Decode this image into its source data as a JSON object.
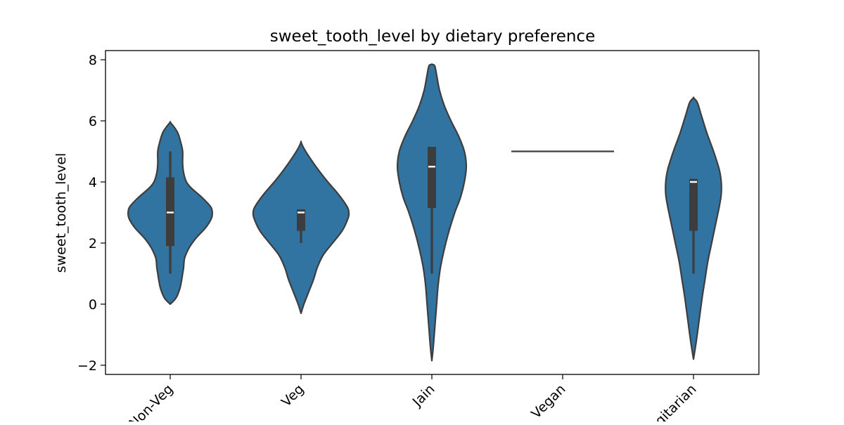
{
  "chart_data": {
    "type": "violin",
    "title": "sweet_tooth_level by dietary preference",
    "xlabel": "",
    "ylabel": "sweet_tooth_level",
    "categories": [
      "Non-Veg",
      "Veg",
      "Jain",
      "Vegan",
      "Eggitarian"
    ],
    "ylim": [
      -2.3,
      8.3
    ],
    "yticks": [
      -2,
      0,
      2,
      4,
      6,
      8
    ],
    "ytick_labels": [
      "−2",
      "0",
      "2",
      "4",
      "6",
      "8"
    ],
    "grid": false,
    "legend": "none",
    "violins": [
      {
        "category": "Non-Veg",
        "kde_min": 0.0,
        "kde_max": 5.95,
        "density_half_width": [
          [
            0.0,
            0.0
          ],
          [
            0.2,
            0.12
          ],
          [
            0.5,
            0.2
          ],
          [
            0.8,
            0.24
          ],
          [
            1.0,
            0.26
          ],
          [
            1.2,
            0.28
          ],
          [
            1.5,
            0.3
          ],
          [
            1.8,
            0.38
          ],
          [
            2.0,
            0.46
          ],
          [
            2.2,
            0.56
          ],
          [
            2.5,
            0.74
          ],
          [
            2.8,
            0.86
          ],
          [
            3.0,
            0.88
          ],
          [
            3.2,
            0.84
          ],
          [
            3.5,
            0.66
          ],
          [
            3.8,
            0.44
          ],
          [
            4.0,
            0.34
          ],
          [
            4.3,
            0.28
          ],
          [
            4.6,
            0.26
          ],
          [
            5.0,
            0.26
          ],
          [
            5.3,
            0.22
          ],
          [
            5.6,
            0.16
          ],
          [
            5.8,
            0.08
          ],
          [
            5.95,
            0.0
          ]
        ],
        "whisker_low": 1.0,
        "q1": 1.9,
        "median": 3.0,
        "q3": 4.15,
        "whisker_high": 5.0
      },
      {
        "category": "Veg",
        "kde_min": -0.3,
        "kde_max": 5.3,
        "density_half_width": [
          [
            -0.3,
            0.0
          ],
          [
            0.0,
            0.06
          ],
          [
            0.4,
            0.16
          ],
          [
            0.8,
            0.26
          ],
          [
            1.2,
            0.34
          ],
          [
            1.6,
            0.46
          ],
          [
            2.0,
            0.66
          ],
          [
            2.4,
            0.86
          ],
          [
            2.8,
            0.98
          ],
          [
            3.0,
            1.0
          ],
          [
            3.2,
            0.96
          ],
          [
            3.6,
            0.78
          ],
          [
            4.0,
            0.56
          ],
          [
            4.4,
            0.36
          ],
          [
            4.8,
            0.18
          ],
          [
            5.1,
            0.06
          ],
          [
            5.3,
            0.0
          ]
        ],
        "whisker_low": 2.0,
        "q1": 2.4,
        "median": 3.0,
        "q3": 3.1,
        "whisker_high": 3.1
      },
      {
        "category": "Jain",
        "kde_min": -1.85,
        "kde_max": 7.85,
        "density_half_width": [
          [
            -1.85,
            0.0
          ],
          [
            -1.4,
            0.03
          ],
          [
            -0.8,
            0.06
          ],
          [
            0.0,
            0.1
          ],
          [
            0.6,
            0.13
          ],
          [
            1.2,
            0.18
          ],
          [
            1.8,
            0.26
          ],
          [
            2.4,
            0.36
          ],
          [
            3.0,
            0.48
          ],
          [
            3.5,
            0.6
          ],
          [
            4.0,
            0.68
          ],
          [
            4.5,
            0.72
          ],
          [
            5.0,
            0.68
          ],
          [
            5.5,
            0.56
          ],
          [
            6.0,
            0.4
          ],
          [
            6.5,
            0.26
          ],
          [
            7.0,
            0.16
          ],
          [
            7.5,
            0.1
          ],
          [
            7.8,
            0.06
          ],
          [
            7.85,
            0.0
          ]
        ],
        "whisker_low": 1.0,
        "q1": 3.15,
        "median": 4.5,
        "q3": 5.15,
        "whisker_high": 5.15
      },
      {
        "category": "Vegan",
        "single_value": 5.0
      },
      {
        "category": "Eggitarian",
        "kde_min": -1.8,
        "kde_max": 6.75,
        "density_half_width": [
          [
            -1.8,
            0.0
          ],
          [
            -1.2,
            0.06
          ],
          [
            -0.5,
            0.12
          ],
          [
            0.2,
            0.18
          ],
          [
            0.8,
            0.24
          ],
          [
            1.4,
            0.3
          ],
          [
            2.0,
            0.38
          ],
          [
            2.6,
            0.46
          ],
          [
            3.2,
            0.54
          ],
          [
            3.6,
            0.58
          ],
          [
            4.0,
            0.58
          ],
          [
            4.4,
            0.54
          ],
          [
            5.0,
            0.42
          ],
          [
            5.6,
            0.28
          ],
          [
            6.2,
            0.16
          ],
          [
            6.6,
            0.08
          ],
          [
            6.75,
            0.0
          ]
        ],
        "whisker_low": 1.0,
        "q1": 2.4,
        "median": 4.0,
        "q3": 4.1,
        "whisker_high": 4.1
      }
    ],
    "colors": {
      "violin_fill": "#3274a1",
      "violin_edge": "#3d3d3d",
      "box": "#3d3d3d",
      "median": "#ffffff",
      "axes": "#000000",
      "background": "#ffffff"
    }
  }
}
